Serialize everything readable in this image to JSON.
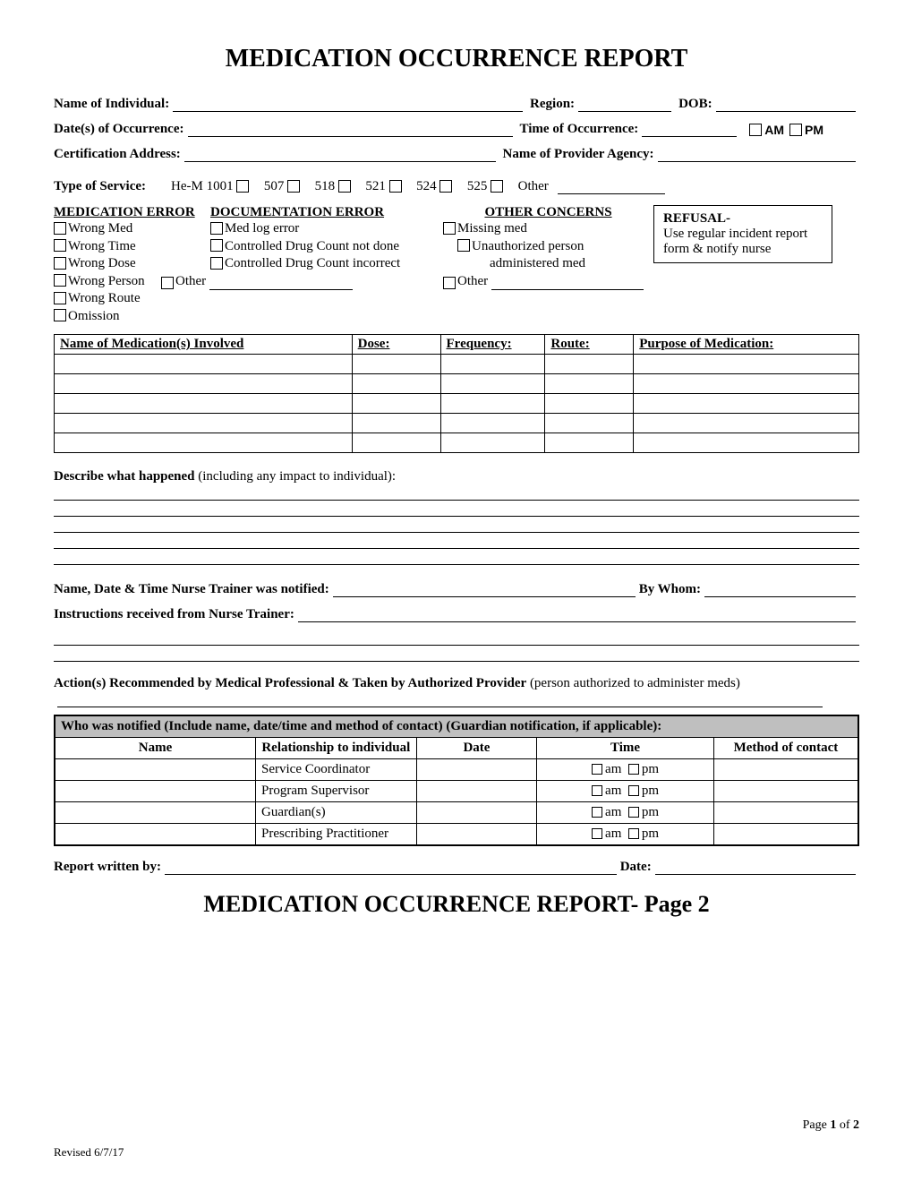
{
  "title": "MEDICATION OCCURRENCE REPORT",
  "title2": "MEDICATION OCCURRENCE REPORT- Page 2",
  "labels": {
    "name_of_individual": "Name of Individual:",
    "region": "Region:",
    "dob": "DOB:",
    "dates_occurrence": "Date(s) of Occurrence:",
    "time_occurrence": "Time of Occurrence:",
    "am": "AM",
    "pm": "PM",
    "cert_address": "Certification Address:",
    "provider_agency": "Name of Provider Agency:",
    "type_service": "Type of Service:",
    "other": "Other",
    "report_written_by": "Report written by:",
    "date": "Date:",
    "by_whom": "By Whom:",
    "describe_bold": "Describe what happened",
    "describe_rest": " (including any impact to individual):",
    "nurse_notified": "Name, Date & Time Nurse Trainer was notified:",
    "instructions": "Instructions received from Nurse Trainer:",
    "actions_bold": "Action(s) Recommended by Medical Professional & Taken by Authorized Provider",
    "actions_rest": " (person authorized to administer meds)"
  },
  "svc_codes": [
    "He-M 1001",
    "507",
    "518",
    "521",
    "524",
    "525"
  ],
  "error_section": {
    "med_error": {
      "header": "MEDICATION ERROR",
      "items": [
        "Wrong Med",
        "Wrong Time",
        "Wrong Dose",
        "Wrong Person",
        "Wrong Route",
        "Omission"
      ]
    },
    "doc_error": {
      "header": "DOCUMENTATION ERROR",
      "items": [
        "Med log error",
        "Controlled Drug Count not done",
        "Controlled Drug Count incorrect"
      ],
      "other": "Other"
    },
    "other_concerns": {
      "header": "OTHER CONCERNS",
      "items": [
        "Missing med",
        "Unauthorized person administered med"
      ],
      "other": "Other"
    },
    "refusal": {
      "header": "REFUSAL-",
      "text": "Use regular incident report form & notify nurse"
    }
  },
  "med_table": {
    "headers": [
      "Name of Medication(s) Involved",
      "Dose:",
      "Frequency:",
      "Route:",
      "Purpose of Medication:"
    ],
    "widths": [
      "37%",
      "11%",
      "13%",
      "11%",
      "28%"
    ],
    "rows": 5
  },
  "notif_table": {
    "header": "Who was notified (Include name, date/time and method of contact) (Guardian notification, if applicable):",
    "cols": [
      "Name",
      "Relationship  to individual",
      "Date",
      "Time",
      "Method of contact"
    ],
    "widths": [
      "25%",
      "20%",
      "15%",
      "22%",
      "18%"
    ],
    "relationships": [
      "Service Coordinator",
      "Program Supervisor",
      "Guardian(s)",
      "Prescribing Practitioner"
    ],
    "am": "am",
    "pm": "pm"
  },
  "footer": {
    "revised": "Revised 6/7/17",
    "page": "Page 1 of 2"
  }
}
